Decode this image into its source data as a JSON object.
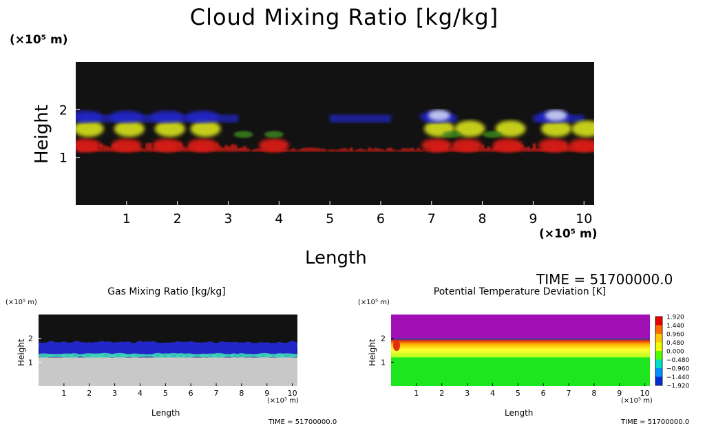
{
  "main_title": "Cloud Mixing Ratio [kg/kg]",
  "time_label": "TIME = 51700000.0",
  "unit_label": "(×10⁵ m)",
  "colors": {
    "background_dark": "#121212",
    "cloud_red": "#d81d14",
    "cloud_yellow": "#d9e21a",
    "cloud_blue": "#2228c8",
    "cloud_white": "#d8dcf5",
    "cloud_green": "#3c8c1e",
    "gas_grey": "#c8c8c8",
    "gas_teal": "#3fd7b8",
    "temp_purple": "#a010b4",
    "temp_green": "#1ee61e"
  },
  "chart_data": [
    {
      "type": "heatmap",
      "title": "Cloud Mixing Ratio [kg/kg]",
      "xlabel": "Length",
      "ylabel": "Height",
      "x_unit": "(×10⁵ m)",
      "y_unit": "(×10⁵ m)",
      "xlim": [
        0,
        10.2
      ],
      "ylim": [
        0,
        3
      ],
      "x_ticks": [
        "1",
        "2",
        "3",
        "4",
        "5",
        "6",
        "7",
        "8",
        "9",
        "10"
      ],
      "y_ticks": [
        "1",
        "2"
      ],
      "time": "TIME = 51700000.0",
      "layers": {
        "rain_base_height": 1.15,
        "mid_yellow_height": 1.6,
        "upper_blue_height": 1.85,
        "clouds": [
          {
            "x": 0.2,
            "blue": true,
            "yellow": true,
            "red": true
          },
          {
            "x": 1.0,
            "blue": true,
            "yellow": true,
            "red": true
          },
          {
            "x": 1.8,
            "blue": true,
            "yellow": true,
            "red": true
          },
          {
            "x": 2.5,
            "blue": true,
            "yellow": true,
            "red": true
          },
          {
            "x": 3.9,
            "blue": false,
            "yellow": false,
            "red": true
          },
          {
            "x": 7.1,
            "blue": true,
            "yellow": true,
            "red": true
          },
          {
            "x": 7.7,
            "blue": false,
            "yellow": true,
            "red": true
          },
          {
            "x": 8.5,
            "blue": false,
            "yellow": true,
            "red": true
          },
          {
            "x": 9.4,
            "blue": true,
            "yellow": true,
            "red": true
          },
          {
            "x": 10.0,
            "blue": false,
            "yellow": true,
            "red": true
          }
        ]
      }
    },
    {
      "type": "heatmap",
      "title": "Gas Mixing Ratio [kg/kg]",
      "xlabel": "Length",
      "ylabel": "Height",
      "x_unit": "(×10⁵ m)",
      "y_unit": "(×10⁵ m)",
      "xlim": [
        0,
        10.2
      ],
      "ylim": [
        0,
        3
      ],
      "x_ticks": [
        "1",
        "2",
        "3",
        "4",
        "5",
        "6",
        "7",
        "8",
        "9",
        "10"
      ],
      "y_ticks": [
        "1",
        "2"
      ],
      "time": "TIME = 51700000.0",
      "layers": {
        "boundary_height": 1.2,
        "blue_top": 1.75
      }
    },
    {
      "type": "heatmap",
      "title": "Potential Temperature Deviation [K]",
      "xlabel": "Length",
      "ylabel": "Height",
      "x_unit": "(×10⁵ m)",
      "y_unit": "(×10⁵ m)",
      "xlim": [
        0,
        10.2
      ],
      "ylim": [
        0,
        3
      ],
      "x_ticks": [
        "1",
        "2",
        "3",
        "4",
        "5",
        "6",
        "7",
        "8",
        "9",
        "10"
      ],
      "y_ticks": [
        "1",
        "2"
      ],
      "time": "TIME = 51700000.0",
      "colorbar": [
        "1.920",
        "1.440",
        "0.960",
        "0.480",
        "0.000",
        "−0.480",
        "−0.960",
        "−1.440",
        "−1.920"
      ],
      "colorbar_colors": [
        "#e80000",
        "#ff6a00",
        "#ffc800",
        "#f0ff00",
        "#50ff00",
        "#00e0c8",
        "#0090ff",
        "#0030d0",
        "#20108a"
      ],
      "layers": {
        "purple_bottom": 2.0,
        "green_top": 1.2
      }
    }
  ]
}
